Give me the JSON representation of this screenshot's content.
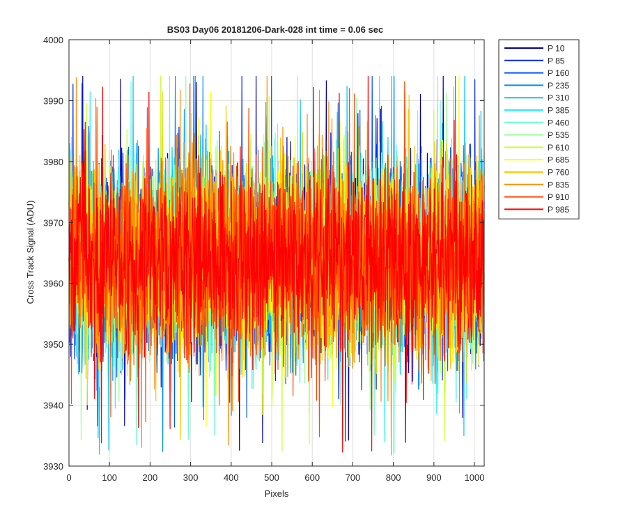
{
  "chart_data": {
    "type": "line",
    "title": "BS03 Day06 20181206-Dark-028 int time = 0.06 sec",
    "xlabel": "Pixels",
    "ylabel": "Cross Track Signal (ADU)",
    "xlim": [
      0,
      1024
    ],
    "ylim": [
      3930,
      4000
    ],
    "xticks": [
      0,
      100,
      200,
      300,
      400,
      500,
      600,
      700,
      800,
      900,
      1000
    ],
    "yticks": [
      3930,
      3940,
      3950,
      3960,
      3970,
      3980,
      3990,
      4000
    ],
    "grid": true,
    "legend_position": "outside-top-right",
    "noise": {
      "mean": 3964,
      "amplitude": 14,
      "points_per_series": 1024
    },
    "series": [
      {
        "name": "P 10",
        "color": "#0000a8"
      },
      {
        "name": "P 85",
        "color": "#0026ff"
      },
      {
        "name": "P 160",
        "color": "#0058ff"
      },
      {
        "name": "P 235",
        "color": "#008cff"
      },
      {
        "name": "P 310",
        "color": "#00c8ff"
      },
      {
        "name": "P 385",
        "color": "#28f0f0"
      },
      {
        "name": "P 460",
        "color": "#66ffcc"
      },
      {
        "name": "P 535",
        "color": "#99ff99"
      },
      {
        "name": "P 610",
        "color": "#ccff33"
      },
      {
        "name": "P 685",
        "color": "#ffff00"
      },
      {
        "name": "P 760",
        "color": "#ffc800"
      },
      {
        "name": "P 835",
        "color": "#ff8c00"
      },
      {
        "name": "P 910",
        "color": "#ff4a00"
      },
      {
        "name": "P 985",
        "color": "#ff0000"
      }
    ]
  }
}
